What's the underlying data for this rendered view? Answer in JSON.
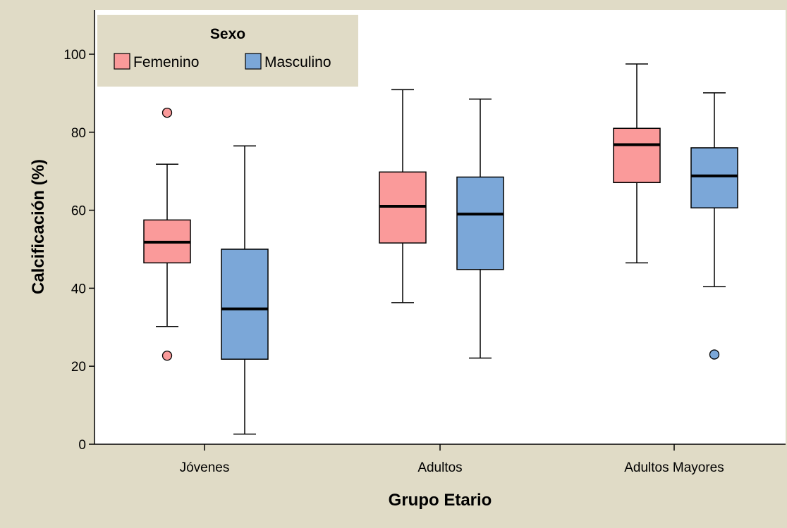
{
  "chart_data": {
    "type": "box",
    "xlabel": "Grupo Etario",
    "ylabel": "Calcificación (%)",
    "ylim": [
      0,
      110
    ],
    "yticks": [
      0,
      20,
      40,
      60,
      80,
      100
    ],
    "categories": [
      "Jóvenes",
      "Adultos",
      "Adultos Mayores"
    ],
    "legend": {
      "title": "Sexo",
      "position": "top-left",
      "entries": [
        "Femenino",
        "Masculino"
      ]
    },
    "series": [
      {
        "name": "Femenino",
        "color": "#fa9a9a",
        "boxes": [
          {
            "min": 30.2,
            "q1": 46.5,
            "median": 51.8,
            "q3": 57.5,
            "max": 71.8,
            "outliers": [
              85.0,
              22.7
            ]
          },
          {
            "min": 36.3,
            "q1": 51.6,
            "median": 61.0,
            "q3": 69.8,
            "max": 90.9,
            "outliers": []
          },
          {
            "min": 46.5,
            "q1": 67.1,
            "median": 76.8,
            "q3": 81.0,
            "max": 97.5,
            "outliers": []
          }
        ]
      },
      {
        "name": "Masculino",
        "color": "#7ba7d8",
        "boxes": [
          {
            "min": 2.6,
            "q1": 21.8,
            "median": 34.7,
            "q3": 50.0,
            "max": 76.5,
            "outliers": []
          },
          {
            "min": 22.1,
            "q1": 44.8,
            "median": 59.0,
            "q3": 68.5,
            "max": 88.5,
            "outliers": []
          },
          {
            "min": 40.4,
            "q1": 60.6,
            "median": 68.8,
            "q3": 76.0,
            "max": 90.1,
            "outliers": [
              23.0
            ]
          }
        ]
      }
    ],
    "colors": {
      "frame_background": "#e0dbc6",
      "plot_background": "#ffffff",
      "legend_background": "#e0dbc6"
    }
  }
}
